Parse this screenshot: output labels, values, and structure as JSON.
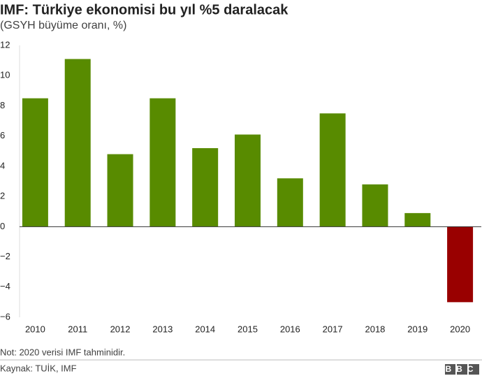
{
  "chart_data": {
    "type": "bar",
    "title": "IMF: Türkiye ekonomisi bu yıl %5 daralacak",
    "subtitle": "(GSYH büyüme oranı, %)",
    "categories": [
      "2010",
      "2011",
      "2012",
      "2013",
      "2014",
      "2015",
      "2016",
      "2017",
      "2018",
      "2019",
      "2020"
    ],
    "values": [
      8.5,
      11.1,
      4.8,
      8.5,
      5.2,
      6.1,
      3.2,
      7.5,
      2.8,
      0.9,
      -5.0
    ],
    "colors": [
      "#588b00",
      "#588b00",
      "#588b00",
      "#588b00",
      "#588b00",
      "#588b00",
      "#588b00",
      "#588b00",
      "#588b00",
      "#588b00",
      "#990000"
    ],
    "ylim": [
      -6,
      12
    ],
    "yticks": [
      {
        "value": -6,
        "label": "−6"
      },
      {
        "value": -4,
        "label": "−4"
      },
      {
        "value": -2,
        "label": "−2"
      },
      0,
      2,
      4,
      6,
      8,
      10,
      12
    ],
    "grid": false,
    "note": "Not: 2020 verisi IMF tahminidir.",
    "source": "Kaynak: TUİK, IMF",
    "logo": "BBC"
  }
}
